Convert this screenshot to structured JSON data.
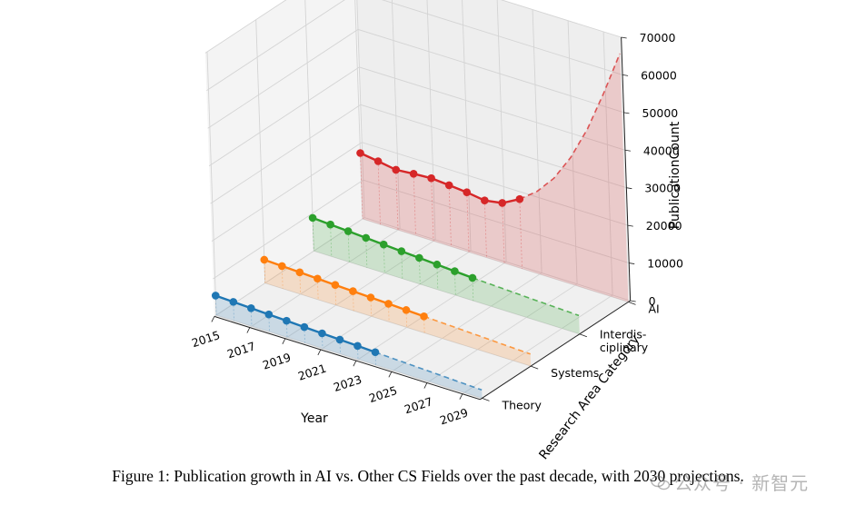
{
  "chart_data": {
    "type": "line",
    "projection": "3d",
    "xlabel": "Year",
    "ylabel": "Research Area Category",
    "zlabel": "PublicationCount",
    "x_ticks": [
      2015,
      2017,
      2019,
      2021,
      2023,
      2025,
      2027,
      2029
    ],
    "xlim": [
      2015,
      2030
    ],
    "z_ticks": [
      0,
      10000,
      20000,
      30000,
      40000,
      50000,
      60000,
      70000
    ],
    "zlim": [
      0,
      70000
    ],
    "categories": [
      "Theory",
      "Systems",
      "Interdis-\nciplinary",
      "AI"
    ],
    "grid": true,
    "observed_years": [
      2015,
      2016,
      2017,
      2018,
      2019,
      2020,
      2021,
      2022,
      2023,
      2024
    ],
    "projection_years": [
      2024,
      2025,
      2026,
      2027,
      2028,
      2029,
      2030
    ],
    "series": [
      {
        "category_index": 0,
        "color": "#1f77b4",
        "observed": [
          5200,
          5000,
          4800,
          4600,
          4400,
          4200,
          4000,
          3800,
          3600,
          3400
        ],
        "projection": [
          3400,
          3200,
          3000,
          2800,
          2600,
          2400,
          2200
        ]
      },
      {
        "category_index": 1,
        "color": "#ff7f0e",
        "observed": [
          6200,
          6000,
          5800,
          5600,
          5400,
          5200,
          5000,
          4800,
          4600,
          4400
        ],
        "projection": [
          4400,
          4200,
          4000,
          3800,
          3600,
          3400,
          3200
        ]
      },
      {
        "category_index": 2,
        "color": "#2ca02c",
        "observed": [
          8800,
          8500,
          8200,
          7900,
          7600,
          7300,
          7000,
          6700,
          6400,
          6100
        ],
        "projection": [
          6100,
          5900,
          5700,
          5500,
          5300,
          5100,
          4900
        ]
      },
      {
        "category_index": 3,
        "color": "#d62728",
        "observed": [
          17500,
          16800,
          16000,
          16400,
          16700,
          16300,
          15900,
          15200,
          16000,
          18500
        ],
        "projection": [
          18500,
          22000,
          27000,
          34000,
          43000,
          54000,
          66000
        ]
      }
    ]
  },
  "caption": "Figure 1: Publication growth in AI vs. Other CS Fields over the past decade, with 2030 projections.",
  "watermark": "公众号 · 新智元"
}
